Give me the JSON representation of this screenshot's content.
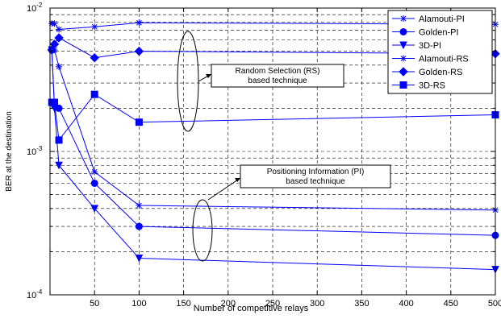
{
  "chart_data": {
    "type": "line",
    "xlabel": "Number of competitive relays",
    "ylabel": "BER at the destination",
    "xlim": [
      0,
      500
    ],
    "ylim": [
      0.0001,
      0.01
    ],
    "yscale": "log",
    "grid": true,
    "legend_position": "top-right",
    "x_ticks": [
      "50",
      "100",
      "150",
      "200",
      "250",
      "300",
      "350",
      "400",
      "450",
      "500"
    ],
    "x_tick_values": [
      50,
      100,
      150,
      200,
      250,
      300,
      350,
      400,
      450,
      500
    ],
    "y_ticks": [
      {
        "value": 0.01,
        "base": "10",
        "exp": "-2"
      },
      {
        "value": 0.001,
        "base": "10",
        "exp": "-3"
      },
      {
        "value": 0.0001,
        "base": "10",
        "exp": "-4"
      }
    ],
    "series": [
      {
        "name": "Alamouti-PI",
        "marker": "star",
        "x": [
          2,
          5,
          10,
          50,
          100,
          500
        ],
        "values": [
          0.0051,
          0.0051,
          0.0039,
          0.00072,
          0.00042,
          0.00039
        ]
      },
      {
        "name": "Golden-PI",
        "marker": "circle",
        "x": [
          2,
          5,
          10,
          50,
          100,
          500
        ],
        "values": [
          0.0051,
          0.0021,
          0.002,
          0.0006,
          0.0003,
          0.00026
        ]
      },
      {
        "name": "3D-PI",
        "marker": "triangle-down",
        "x": [
          2,
          5,
          10,
          50,
          100,
          500
        ],
        "values": [
          0.0051,
          0.002,
          0.0008,
          0.0004,
          0.00018,
          0.00015
        ]
      },
      {
        "name": "Alamouti-RS",
        "marker": "star",
        "x": [
          2,
          5,
          10,
          50,
          100,
          500
        ],
        "values": [
          0.0078,
          0.0078,
          0.0071,
          0.0074,
          0.0079,
          0.0077
        ]
      },
      {
        "name": "Golden-RS",
        "marker": "diamond",
        "x": [
          2,
          5,
          10,
          50,
          100,
          500
        ],
        "values": [
          0.0051,
          0.0056,
          0.0062,
          0.0045,
          0.005,
          0.0048
        ]
      },
      {
        "name": "3D-RS",
        "marker": "square",
        "x": [
          2,
          5,
          10,
          50,
          100,
          500
        ],
        "values": [
          0.0022,
          0.0022,
          0.0012,
          0.0025,
          0.0016,
          0.0018
        ]
      }
    ],
    "annotations": [
      {
        "line1": "Random Selection (RS)",
        "line2": "based technique"
      },
      {
        "line1": "Positioning Information (PI)",
        "line2": "based technique"
      }
    ],
    "colors": {
      "series": "#0000ff",
      "grid": "#000000",
      "axes": "#000000"
    }
  }
}
